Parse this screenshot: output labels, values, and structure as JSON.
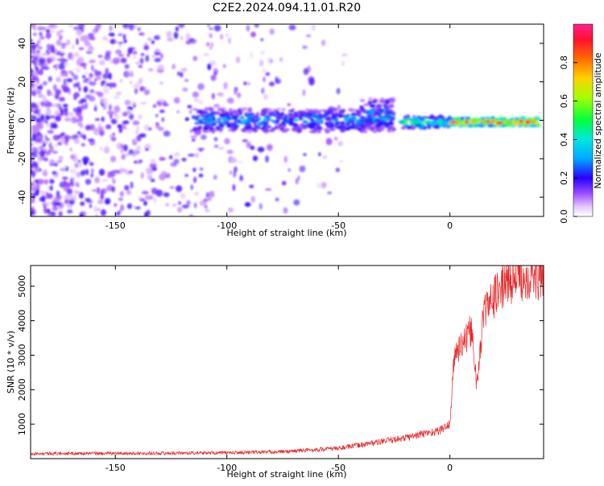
{
  "figure": {
    "title": "C2E2.2024.094.11.01.R20"
  },
  "chart_data": [
    {
      "type": "heatmap",
      "xlabel": "Height of straight line (km)",
      "ylabel": "Frequency (Hz)",
      "xlim": [
        -188,
        42
      ],
      "ylim": [
        -50,
        50
      ],
      "xticks": [
        -150,
        -100,
        -50,
        0
      ],
      "yticks": [
        -40,
        -20,
        0,
        20,
        40
      ],
      "colorbar": {
        "label": "Normalized spectral amplitude",
        "range": [
          0,
          1
        ],
        "ticks": [
          "0.0",
          "0.2",
          "0.4",
          "0.6",
          "0.8"
        ],
        "colormap": "rainbow"
      },
      "colors": {
        "low": "#9b4dff",
        "high": "#e8102a"
      },
      "description_values": {
        "scatter_region_x": [
          -188,
          -75
        ],
        "band_segments": [
          {
            "x0": -115,
            "x1": -25,
            "center_hz": 0,
            "halfwidth_hz": 6,
            "amplitude": 0.3
          },
          {
            "x0": -40,
            "x1": -25,
            "center_hz": 3,
            "halfwidth_hz": 8,
            "amplitude": 0.3
          },
          {
            "x0": -22,
            "x1": 0,
            "center_hz": -1,
            "halfwidth_hz": 3,
            "amplitude": 0.5
          },
          {
            "x0": 0,
            "x1": 40,
            "center_hz": -1,
            "halfwidth_hz": 2,
            "amplitude": 0.9
          }
        ]
      },
      "grid": false
    },
    {
      "type": "line",
      "xlabel": "Height of straight line (km)",
      "ylabel": "SNR (10 * v/v)",
      "xlim": [
        -188,
        42
      ],
      "ylim": [
        0,
        5600
      ],
      "xticks": [
        -150,
        -100,
        -50,
        0
      ],
      "yticks": [
        1000,
        2000,
        3000,
        4000,
        5000
      ],
      "series": [
        {
          "color": "#e8282a",
          "x": [
            -188,
            -150,
            -100,
            -75,
            -50,
            -40,
            -30,
            -20,
            -10,
            -5,
            0,
            2,
            5,
            8,
            10,
            12,
            15,
            20,
            25,
            30,
            35,
            42
          ],
          "y": [
            150,
            150,
            170,
            200,
            300,
            400,
            500,
            600,
            750,
            800,
            1000,
            3000,
            3300,
            3500,
            3800,
            2000,
            4200,
            4700,
            5100,
            5200,
            5300,
            5200
          ]
        }
      ],
      "grid": false
    }
  ]
}
